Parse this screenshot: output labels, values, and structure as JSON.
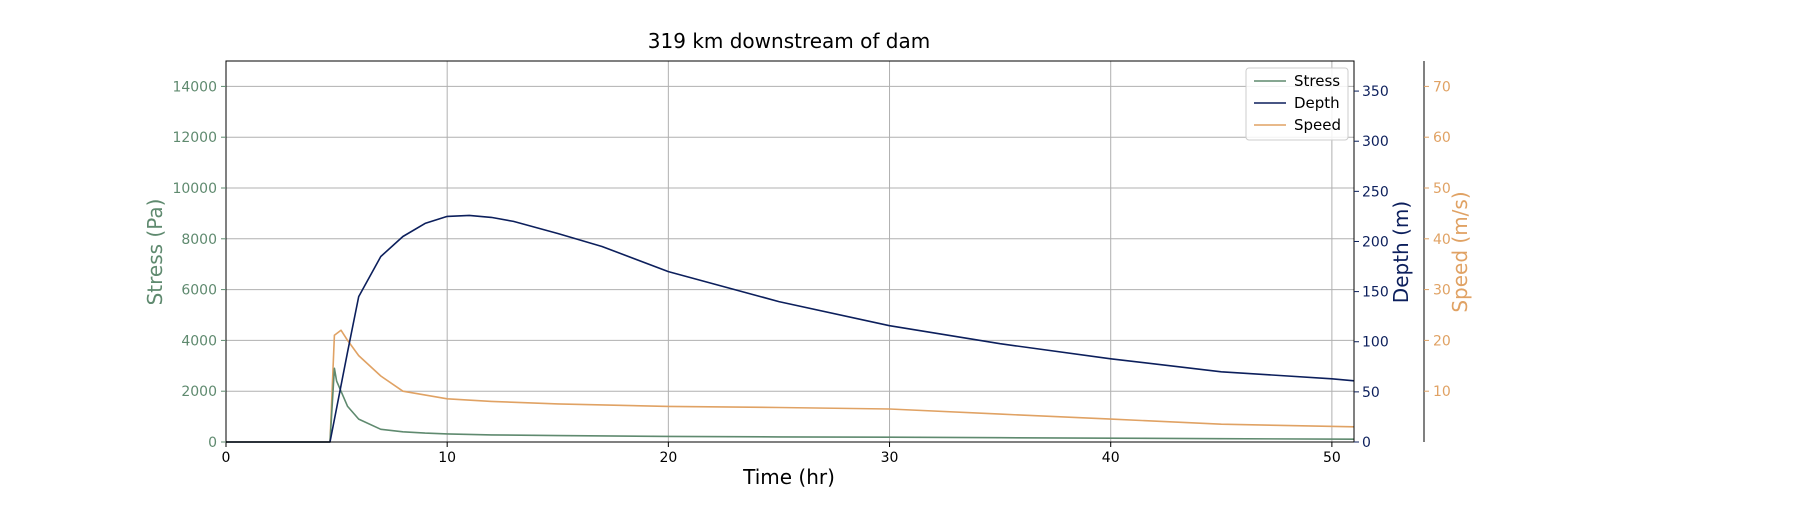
{
  "chart_data": {
    "type": "line",
    "title": "319 km downstream of dam",
    "xlabel": "Time (hr)",
    "xlim": [
      0,
      51
    ],
    "x_ticks": [
      0,
      10,
      20,
      30,
      40,
      50
    ],
    "grid": true,
    "legend_position": "top-right",
    "colors": {
      "stress": "#5f8a6f",
      "depth": "#0c1f5c",
      "speed": "#e0a264"
    },
    "axes": {
      "left": {
        "label": "Stress (Pa)",
        "ylim": [
          0,
          15000
        ],
        "ticks": [
          0,
          2000,
          4000,
          6000,
          8000,
          10000,
          12000,
          14000
        ]
      },
      "right": {
        "label": "Depth (m)",
        "ylim": [
          0,
          380
        ],
        "ticks": [
          0,
          50,
          100,
          150,
          200,
          250,
          300,
          350
        ]
      },
      "right2": {
        "label": "Speed (m/s)",
        "ylim": [
          0,
          75
        ],
        "ticks": [
          10,
          20,
          30,
          40,
          50,
          60,
          70
        ]
      }
    },
    "series": [
      {
        "name": "Stress",
        "axis": "left",
        "x": [
          0,
          4.7,
          4.9,
          5.0,
          5.2,
          5.5,
          6,
          7,
          8,
          9,
          10,
          12,
          15,
          20,
          25,
          30,
          35,
          40,
          45,
          51
        ],
        "y": [
          0,
          0,
          2900,
          2400,
          2000,
          1400,
          900,
          500,
          400,
          350,
          320,
          280,
          250,
          220,
          200,
          190,
          170,
          150,
          130,
          110
        ]
      },
      {
        "name": "Depth",
        "axis": "right",
        "x": [
          0,
          4.7,
          5.5,
          6,
          7,
          8,
          9,
          10,
          11,
          12,
          13,
          15,
          17,
          20,
          25,
          30,
          35,
          40,
          45,
          50,
          51
        ],
        "y": [
          0,
          0,
          90,
          145,
          185,
          205,
          218,
          225,
          226,
          224,
          220,
          208,
          195,
          170,
          140,
          116,
          98,
          83,
          70,
          63,
          61
        ]
      },
      {
        "name": "Speed",
        "axis": "right2",
        "x": [
          0,
          4.7,
          4.9,
          5.2,
          5.5,
          6,
          7,
          8,
          10,
          12,
          15,
          20,
          25,
          30,
          35,
          40,
          45,
          51
        ],
        "y": [
          0,
          0,
          21,
          22,
          20,
          17,
          13,
          10,
          8.5,
          8,
          7.5,
          7,
          6.8,
          6.5,
          5.5,
          4.5,
          3.5,
          3
        ]
      }
    ]
  }
}
